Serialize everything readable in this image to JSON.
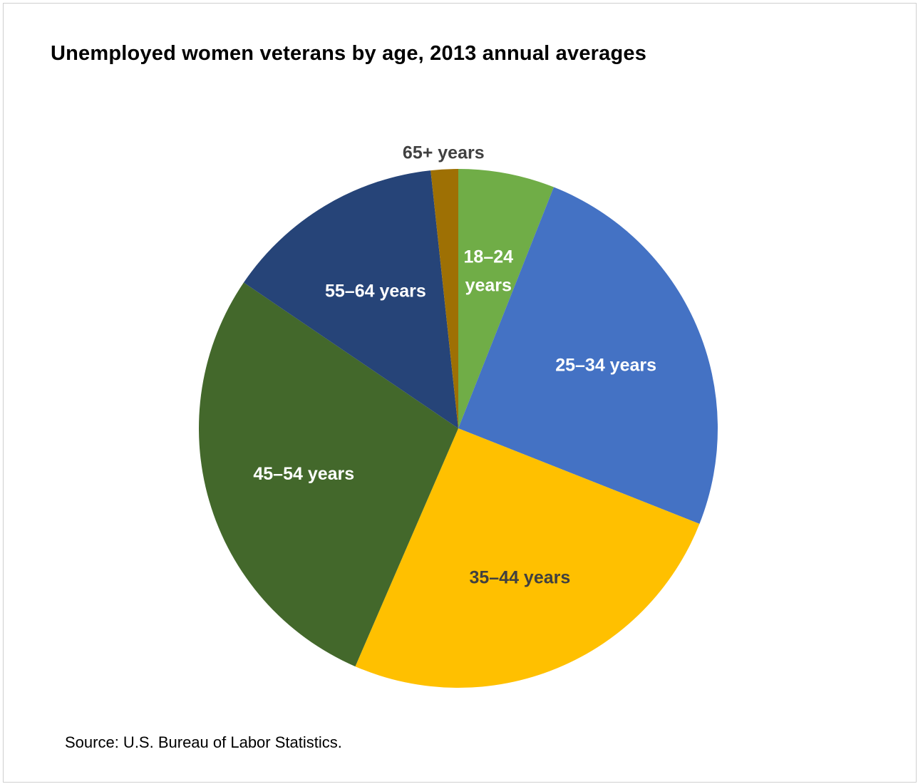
{
  "chart_data": {
    "type": "pie",
    "title": "Unemployed women veterans by age, 2013 annual averages",
    "source": "Source: U.S. Bureau of Labor Statistics.",
    "slices": [
      {
        "label": "18–24 years",
        "lines": [
          "18–24",
          "years"
        ],
        "value": 6.0,
        "color": "#70ad47",
        "label_color": "#ffffff"
      },
      {
        "label": "25–34 years",
        "lines": [
          "25–34 years"
        ],
        "value": 25.0,
        "color": "#4472c4",
        "label_color": "#ffffff"
      },
      {
        "label": "35–44 years",
        "lines": [
          "35–44 years"
        ],
        "value": 25.5,
        "color": "#ffc000",
        "label_color": "#404040"
      },
      {
        "label": "45–54 years",
        "lines": [
          "45–54 years"
        ],
        "value": 28.0,
        "color": "#43682b",
        "label_color": "#ffffff"
      },
      {
        "label": "55–64 years",
        "lines": [
          "55–64 years"
        ],
        "value": 13.8,
        "color": "#264478",
        "label_color": "#ffffff"
      },
      {
        "label": "65+ years",
        "lines": [
          "65+ years"
        ],
        "value": 1.7,
        "color": "#9e7004",
        "label_color": "#404040",
        "label_outside": true
      }
    ]
  }
}
